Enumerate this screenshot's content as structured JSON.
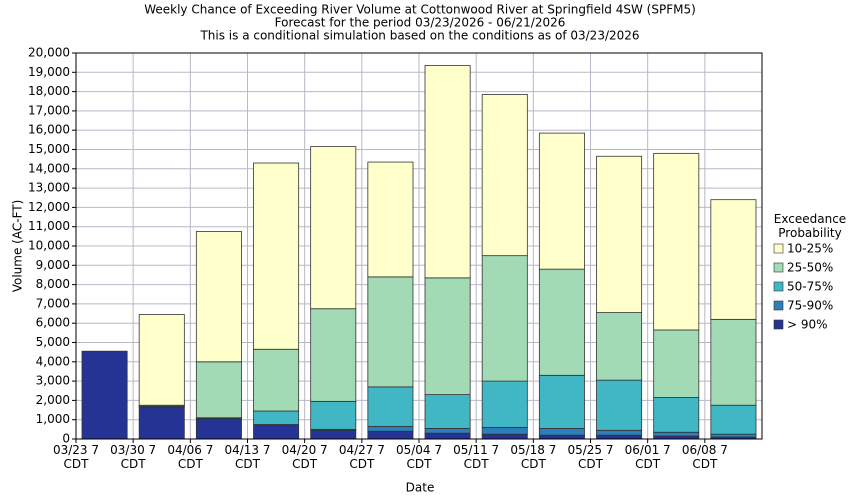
{
  "chart_data": {
    "type": "stacked_bar",
    "title": "Weekly Chance of Exceeding River Volume at Cottonwood River at Springfield 4SW (SPFM5)",
    "subtitle": "Forecast for the period 03/23/2026 - 06/21/2026",
    "note": "This is a conditional simulation based on the conditions as of 03/23/2026",
    "x_label": "Date",
    "y_label": "Volume (AC-FT)",
    "legend_title": "Exceedance Probability",
    "categories": [
      "03/23 7 CDT",
      "03/30 7 CDT",
      "04/06 7 CDT",
      "04/13 7 CDT",
      "04/20 7 CDT",
      "04/27 7 CDT",
      "05/04 7 CDT",
      "05/11 7 CDT",
      "05/18 7 CDT",
      "05/25 7 CDT",
      "06/01 7 CDT",
      "06/08 7 CDT"
    ],
    "series": [
      {
        "name": "> 90%",
        "color": "#253494",
        "values": [
          4550,
          1650,
          1050,
          700,
          450,
          400,
          300,
          250,
          200,
          200,
          150,
          100
        ]
      },
      {
        "name": "75-90%",
        "color": "#2c7fb8",
        "values": [
          0,
          50,
          30,
          50,
          50,
          250,
          250,
          350,
          350,
          250,
          200,
          150
        ]
      },
      {
        "name": "50-75%",
        "color": "#41b6c4",
        "values": [
          0,
          0,
          20,
          700,
          1450,
          2050,
          1750,
          2400,
          2750,
          2600,
          1800,
          1500
        ]
      },
      {
        "name": "25-50%",
        "color": "#a1dab4",
        "values": [
          0,
          50,
          2900,
          3200,
          4800,
          5700,
          6050,
          6500,
          5500,
          3500,
          3500,
          4450
        ]
      },
      {
        "name": "10-25%",
        "color": "#ffffcc",
        "values": [
          0,
          4700,
          6750,
          9650,
          8400,
          5950,
          11000,
          8350,
          7050,
          8100,
          9150,
          6200
        ]
      }
    ],
    "ylim": [
      0,
      20000
    ],
    "yticks": [
      0,
      {
        "value": 1000,
        "label": "1,000"
      },
      {
        "value": 2000,
        "label": "2,000"
      },
      {
        "value": 3000,
        "label": "3,000"
      },
      {
        "value": 4000,
        "label": "4,000"
      },
      {
        "value": 5000,
        "label": "5,000"
      },
      {
        "value": 6000,
        "label": "6,000"
      },
      {
        "value": 7000,
        "label": "7,000"
      },
      {
        "value": 8000,
        "label": "8,000"
      },
      {
        "value": 9000,
        "label": "9,000"
      },
      {
        "value": 10000,
        "label": "10,000"
      },
      {
        "value": 11000,
        "label": "11,000"
      },
      {
        "value": 12000,
        "label": "12,000"
      },
      {
        "value": 13000,
        "label": "13,000"
      },
      {
        "value": 14000,
        "label": "14,000"
      },
      {
        "value": 15000,
        "label": "15,000"
      },
      {
        "value": 16000,
        "label": "16,000"
      },
      {
        "value": 17000,
        "label": "17,000"
      },
      {
        "value": 18000,
        "label": "18,000"
      },
      {
        "value": 19000,
        "label": "19,000"
      },
      {
        "value": 20000,
        "label": "20,000"
      }
    ],
    "grid": true
  }
}
